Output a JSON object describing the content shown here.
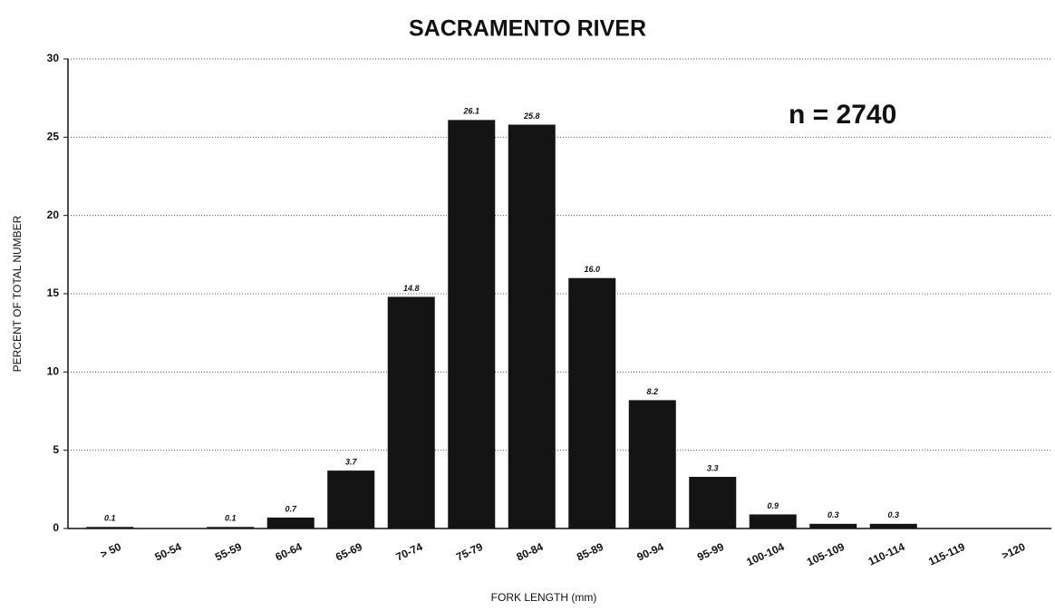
{
  "chart_data": {
    "type": "bar",
    "title": "SACRAMENTO RIVER",
    "annotation": "n = 2740",
    "x_label": "FORK LENGTH (mm)",
    "y_label": "PERCENT OF TOTAL NUMBER",
    "categories": [
      "> 50",
      "50-54",
      "55-59",
      "60-64",
      "65-69",
      "70-74",
      "75-79",
      "80-84",
      "85-89",
      "90-94",
      "95-99",
      "100-104",
      "105-109",
      "110-114",
      "115-119",
      ">120"
    ],
    "values": [
      0.1,
      0,
      0.1,
      0.7,
      3.7,
      14.8,
      26.1,
      25.8,
      16.0,
      8.2,
      3.3,
      0.9,
      0.3,
      0.3,
      0,
      0
    ],
    "value_labels": [
      "0.1",
      null,
      "0.1",
      "0.7",
      "3.7",
      "14.8",
      "26.1",
      "25.8",
      "16.0",
      "8.2",
      "3.3",
      "0.9",
      "0.3",
      "0.3",
      null,
      null
    ],
    "color": "#141414",
    "ylim": [
      0,
      30
    ],
    "yticks": [
      0,
      5,
      10,
      15,
      20,
      25,
      30
    ],
    "grid": true
  }
}
